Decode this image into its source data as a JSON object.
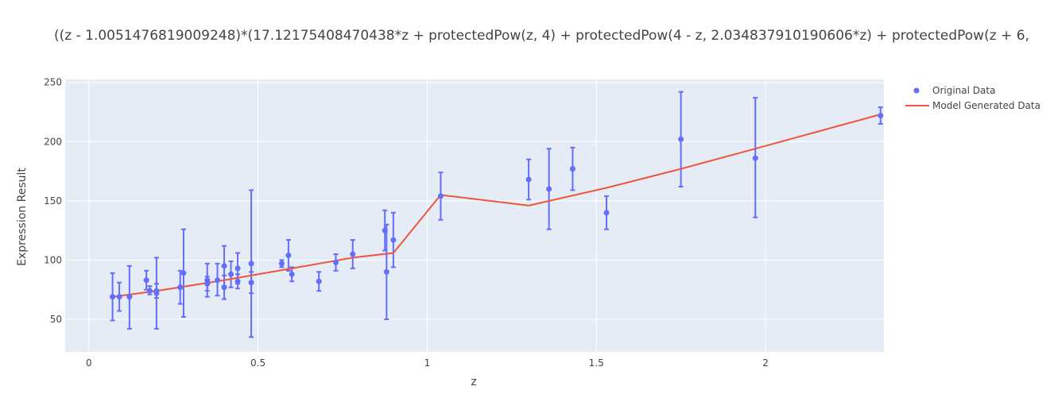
{
  "chart_data": {
    "type": "scatter",
    "title": "((z - 1.0051476819009248)*(17.12175408470438*z + protectedPow(z, 4) + protectedPow(4 - z, 2.034837910190606*z) + protectedPow(z + 6,",
    "xlabel": "z",
    "ylabel": "Expression Result",
    "xlim": [
      -0.07,
      2.35
    ],
    "ylim": [
      22.5,
      252.5
    ],
    "xticks": [
      0,
      0.5,
      1,
      1.5,
      2
    ],
    "xtick_labels": [
      "0",
      "0.5",
      "1",
      "1.5",
      "2"
    ],
    "yticks": [
      50,
      100,
      150,
      200,
      250
    ],
    "ytick_labels": [
      "50",
      "100",
      "150",
      "200",
      "250"
    ],
    "grid": true,
    "legend_position": "top-right",
    "series": [
      {
        "name": "Original Data",
        "mode": "markers",
        "color": "#636efa",
        "points": [
          {
            "x": 0.07,
            "y": 69,
            "lo": 49,
            "hi": 89
          },
          {
            "x": 0.09,
            "y": 69,
            "lo": 57,
            "hi": 81
          },
          {
            "x": 0.12,
            "y": 69,
            "lo": 42,
            "hi": 95
          },
          {
            "x": 0.17,
            "y": 83,
            "lo": 75,
            "hi": 91
          },
          {
            "x": 0.18,
            "y": 74,
            "lo": 71,
            "hi": 78
          },
          {
            "x": 0.2,
            "y": 72,
            "lo": 42,
            "hi": 102
          },
          {
            "x": 0.2,
            "y": 74,
            "lo": 68,
            "hi": 80
          },
          {
            "x": 0.27,
            "y": 77,
            "lo": 63,
            "hi": 91
          },
          {
            "x": 0.28,
            "y": 89,
            "lo": 52,
            "hi": 126
          },
          {
            "x": 0.35,
            "y": 83,
            "lo": 69,
            "hi": 97
          },
          {
            "x": 0.35,
            "y": 80,
            "lo": 74,
            "hi": 86
          },
          {
            "x": 0.38,
            "y": 83,
            "lo": 70,
            "hi": 97
          },
          {
            "x": 0.4,
            "y": 95,
            "lo": 78,
            "hi": 112
          },
          {
            "x": 0.4,
            "y": 77,
            "lo": 67,
            "hi": 87
          },
          {
            "x": 0.42,
            "y": 88,
            "lo": 77,
            "hi": 99
          },
          {
            "x": 0.44,
            "y": 93,
            "lo": 80,
            "hi": 106
          },
          {
            "x": 0.44,
            "y": 82,
            "lo": 76,
            "hi": 88
          },
          {
            "x": 0.48,
            "y": 97,
            "lo": 35,
            "hi": 159
          },
          {
            "x": 0.48,
            "y": 81,
            "lo": 72,
            "hi": 90
          },
          {
            "x": 0.57,
            "y": 97,
            "lo": 94,
            "hi": 100
          },
          {
            "x": 0.59,
            "y": 104,
            "lo": 91,
            "hi": 117
          },
          {
            "x": 0.6,
            "y": 88,
            "lo": 82,
            "hi": 94
          },
          {
            "x": 0.68,
            "y": 82,
            "lo": 74,
            "hi": 90
          },
          {
            "x": 0.73,
            "y": 98,
            "lo": 91,
            "hi": 105
          },
          {
            "x": 0.78,
            "y": 105,
            "lo": 93,
            "hi": 117
          },
          {
            "x": 0.875,
            "y": 125,
            "lo": 108,
            "hi": 142
          },
          {
            "x": 0.88,
            "y": 90,
            "lo": 50,
            "hi": 130
          },
          {
            "x": 0.9,
            "y": 117,
            "lo": 94,
            "hi": 140
          },
          {
            "x": 1.04,
            "y": 154,
            "lo": 134,
            "hi": 174
          },
          {
            "x": 1.3,
            "y": 168,
            "lo": 151,
            "hi": 185
          },
          {
            "x": 1.36,
            "y": 160,
            "lo": 126,
            "hi": 194
          },
          {
            "x": 1.43,
            "y": 177,
            "lo": 159,
            "hi": 195
          },
          {
            "x": 1.53,
            "y": 140,
            "lo": 126,
            "hi": 154
          },
          {
            "x": 1.75,
            "y": 202,
            "lo": 162,
            "hi": 242
          },
          {
            "x": 1.97,
            "y": 186,
            "lo": 136,
            "hi": 237
          },
          {
            "x": 2.34,
            "y": 222,
            "lo": 215,
            "hi": 229
          }
        ]
      },
      {
        "name": "Model Generated Data",
        "mode": "lines",
        "color": "#ef553b",
        "x": [
          0.07,
          0.2,
          0.4,
          0.6,
          0.78,
          0.9,
          1.04,
          1.3,
          1.53,
          1.75,
          1.97,
          2.34
        ],
        "y": [
          69,
          74,
          83,
          93,
          102,
          106,
          155,
          146,
          161,
          177,
          194,
          223
        ]
      }
    ]
  }
}
